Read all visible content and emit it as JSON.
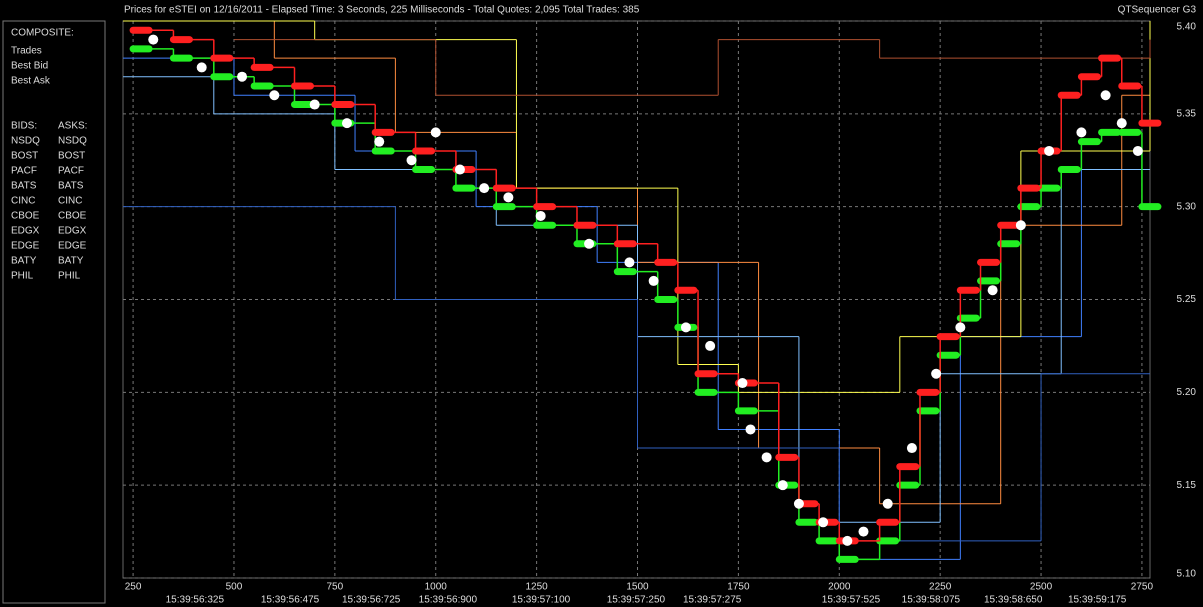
{
  "chart_data": {
    "type": "quote-sequence",
    "title": "Prices for  eSTEI  on  12/16/2011  -  Elapsed Time: 3 Seconds, 225 Milliseconds  -  Total Quotes: 2,095  Total Trades: 385",
    "app_name": "QTSequencer G3",
    "composite_label": "COMPOSITE:",
    "bids_label": "BIDS:",
    "asks_label": "ASKS:",
    "xlim": [
      225,
      2770
    ],
    "xticks": [
      250,
      500,
      750,
      1000,
      1250,
      1500,
      1750,
      2000,
      2250,
      2500,
      2750
    ],
    "time_labels": [
      {
        "value": 403,
        "label": "15:39:56:325"
      },
      {
        "value": 639,
        "label": "15:39:56:475"
      },
      {
        "value": 840,
        "label": "15:39:56:725"
      },
      {
        "value": 1030,
        "label": "15:39:56:900"
      },
      {
        "value": 1261,
        "label": "15:39:57:100"
      },
      {
        "value": 1496,
        "label": "15:39:57:250"
      },
      {
        "value": 1685,
        "label": "15:39:57:275"
      },
      {
        "value": 2029,
        "label": "15:39:57:525"
      },
      {
        "value": 2227,
        "label": "15:39:58:075"
      },
      {
        "value": 2431,
        "label": "15:39:58:650"
      },
      {
        "value": 2639,
        "label": "15:39:59:175"
      }
    ],
    "ylim": [
      5.1,
      5.4
    ],
    "yticks": [
      {
        "value": 5.4,
        "label": "5.40"
      },
      5.35,
      {
        "value": 5.3,
        "label": "5.30"
      },
      5.25,
      {
        "value": 5.2,
        "label": "5.20"
      },
      5.15,
      {
        "value": 5.1,
        "label": "5.10"
      }
    ],
    "grid": true,
    "trades": {
      "name": "Trades",
      "color": "#ffffff",
      "x": [
        300,
        420,
        520,
        600,
        700,
        780,
        860,
        940,
        1000,
        1060,
        1120,
        1180,
        1260,
        1380,
        1480,
        1540,
        1620,
        1680,
        1760,
        1780,
        1820,
        1860,
        1900,
        1960,
        2020,
        2060,
        2120,
        2180,
        2240,
        2300,
        2380,
        2450,
        2520,
        2600,
        2660,
        2700,
        2740
      ],
      "values": [
        5.39,
        5.375,
        5.37,
        5.36,
        5.355,
        5.345,
        5.335,
        5.325,
        5.34,
        5.32,
        5.31,
        5.305,
        5.295,
        5.28,
        5.27,
        5.26,
        5.235,
        5.225,
        5.205,
        5.18,
        5.165,
        5.15,
        5.14,
        5.13,
        5.12,
        5.125,
        5.14,
        5.17,
        5.21,
        5.235,
        5.255,
        5.29,
        5.33,
        5.34,
        5.36,
        5.345,
        5.33
      ]
    },
    "quote_x": [
      250,
      350,
      450,
      550,
      650,
      750,
      850,
      950,
      1050,
      1150,
      1250,
      1350,
      1450,
      1550,
      1600,
      1650,
      1750,
      1850,
      1900,
      1950,
      2000,
      2100,
      2150,
      2200,
      2250,
      2300,
      2350,
      2400,
      2450,
      2500,
      2550,
      2600,
      2650,
      2700,
      2750
    ],
    "series": [
      {
        "name": "Best Bid",
        "color": "#22ee22",
        "values": [
          5.385,
          5.38,
          5.37,
          5.365,
          5.355,
          5.345,
          5.33,
          5.32,
          5.31,
          5.3,
          5.29,
          5.28,
          5.265,
          5.25,
          5.235,
          5.2,
          5.19,
          5.15,
          5.13,
          5.12,
          5.11,
          5.12,
          5.15,
          5.19,
          5.22,
          5.24,
          5.26,
          5.28,
          5.3,
          5.31,
          5.32,
          5.335,
          5.34,
          5.34,
          5.3
        ]
      },
      {
        "name": "Best Ask",
        "color": "#ff2020",
        "values": [
          5.395,
          5.39,
          5.38,
          5.375,
          5.365,
          5.355,
          5.34,
          5.33,
          5.32,
          5.31,
          5.3,
          5.29,
          5.28,
          5.27,
          5.255,
          5.21,
          5.205,
          5.165,
          5.14,
          5.13,
          5.12,
          5.13,
          5.16,
          5.2,
          5.23,
          5.255,
          5.27,
          5.29,
          5.31,
          5.33,
          5.36,
          5.37,
          5.38,
          5.365,
          5.345
        ]
      }
    ],
    "exchanges": [
      {
        "name": "NSDQ",
        "bid_color": "#4080ff",
        "ask_color": "#ff8c40",
        "bid_x": [
          225,
          500,
          800,
          1100,
          1400,
          1700,
          2000,
          2300,
          2600
        ],
        "bids": [
          5.38,
          5.36,
          5.33,
          5.3,
          5.27,
          5.18,
          5.11,
          5.23,
          5.33
        ],
        "ask_x": [
          225,
          600,
          900,
          1200,
          1500,
          1800,
          2100,
          2400,
          2700
        ],
        "asks": [
          5.4,
          5.38,
          5.34,
          5.31,
          5.27,
          5.17,
          5.14,
          5.29,
          5.36
        ]
      },
      {
        "name": "BOST",
        "bid_color": "#98c870",
        "ask_color": "#e07050"
      },
      {
        "name": "PACF",
        "bid_color": "#b0ffff",
        "ask_color": "#ffff50",
        "ask_x": [
          225,
          700,
          1200,
          1600,
          1750,
          2150,
          2450,
          2770
        ],
        "asks": [
          5.4,
          5.39,
          5.31,
          5.215,
          5.2,
          5.23,
          5.33,
          5.4
        ]
      },
      {
        "name": "BATS",
        "bid_color": "#80c0ff",
        "ask_color": "#ffd080",
        "bid_x": [
          225,
          450,
          750,
          1150,
          1500,
          1900,
          2250,
          2550
        ],
        "bids": [
          5.37,
          5.35,
          5.32,
          5.29,
          5.23,
          5.13,
          5.21,
          5.32
        ]
      },
      {
        "name": "CINC",
        "bid_color": "#60a8a8",
        "ask_color": "#a8a860"
      },
      {
        "name": "CBOE",
        "bid_color": "#3060c0",
        "ask_color": "#c08040",
        "bid_x": [
          225,
          900,
          1500,
          2000,
          2500
        ],
        "bids": [
          5.3,
          5.25,
          5.17,
          5.12,
          5.21
        ]
      },
      {
        "name": "EDGX",
        "bid_color": "#40a060",
        "ask_color": "#b05030",
        "ask_x": [
          500,
          1000,
          1700,
          2100,
          2770
        ],
        "asks": [
          5.39,
          5.36,
          5.39,
          5.38,
          5.39
        ]
      },
      {
        "name": "EDGE",
        "bid_color": "#60a040",
        "ask_color": "#c06060"
      },
      {
        "name": "BATY",
        "bid_color": "#4060c0",
        "ask_color": "#c03030"
      },
      {
        "name": "PHIL",
        "bid_color": "#80a040",
        "ask_color": "#a04040"
      }
    ]
  }
}
